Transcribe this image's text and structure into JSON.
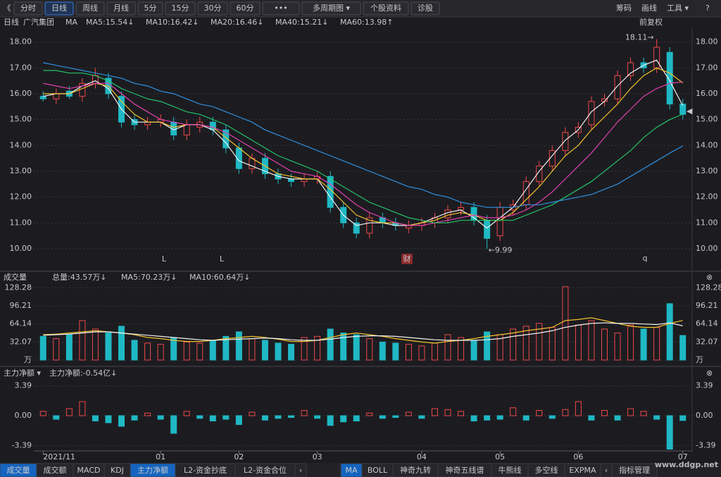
{
  "toolbar": {
    "left": [
      "《",
      "分时",
      "日线",
      "周线",
      "月线",
      "5分",
      "15分",
      "30分",
      "60分",
      "•••",
      "多周期图 ▾",
      "个股资料",
      "诊股"
    ],
    "right": [
      "筹码",
      "画线",
      "工具 ▾",
      "?"
    ]
  },
  "header": {
    "period": "日线",
    "name": "广汽集团",
    "indicator": "MA",
    "adjust": "前复权"
  },
  "chart_data": [
    {
      "type": "candlestick",
      "categories": [
        "2021/11",
        null,
        null,
        null,
        null,
        null,
        null,
        null,
        null,
        "01",
        null,
        null,
        null,
        null,
        null,
        "02",
        null,
        null,
        null,
        null,
        null,
        "03",
        null,
        null,
        null,
        null,
        null,
        null,
        null,
        "04",
        null,
        null,
        null,
        null,
        null,
        "05",
        null,
        null,
        null,
        null,
        null,
        "06",
        null,
        null,
        null,
        null,
        null,
        null,
        null,
        "07"
      ],
      "open": [
        15.9,
        15.8,
        16.1,
        15.9,
        16.4,
        16.6,
        15.9,
        15.0,
        14.8,
        14.9,
        14.9,
        14.4,
        14.7,
        14.9,
        14.6,
        13.9,
        13.1,
        13.5,
        12.9,
        12.7,
        12.6,
        12.7,
        12.8,
        11.6,
        11.0,
        10.6,
        11.2,
        11.0,
        10.8,
        10.9,
        11.0,
        11.2,
        11.5,
        11.6,
        11.1,
        10.5,
        11.5,
        11.7,
        12.6,
        13.2,
        13.8,
        14.5,
        14.8,
        15.7,
        15.8,
        16.7,
        17.2,
        17.0,
        17.6,
        15.6
      ],
      "high": [
        16.1,
        16.2,
        16.3,
        16.6,
        17.0,
        16.8,
        16.1,
        15.2,
        15.1,
        15.2,
        15.1,
        15.0,
        15.1,
        15.1,
        14.8,
        14.1,
        13.7,
        13.7,
        13.1,
        12.9,
        12.9,
        13.0,
        13.0,
        11.8,
        11.2,
        11.4,
        11.4,
        11.2,
        11.1,
        11.2,
        11.4,
        11.7,
        11.8,
        11.8,
        11.3,
        11.8,
        11.9,
        12.8,
        13.4,
        14.0,
        14.7,
        14.9,
        15.9,
        16.0,
        16.9,
        17.4,
        17.4,
        18.11,
        17.8,
        15.8
      ],
      "low": [
        15.7,
        15.6,
        15.8,
        15.7,
        16.2,
        15.8,
        14.7,
        14.6,
        14.6,
        14.7,
        14.2,
        14.2,
        14.5,
        14.4,
        13.7,
        12.9,
        12.9,
        12.7,
        12.5,
        12.4,
        12.4,
        12.5,
        11.4,
        10.8,
        10.4,
        10.4,
        10.8,
        10.7,
        10.6,
        10.7,
        10.8,
        11.0,
        11.3,
        10.9,
        9.99,
        10.3,
        11.3,
        11.5,
        12.4,
        13.0,
        13.6,
        14.3,
        14.6,
        15.5,
        15.6,
        16.5,
        16.8,
        16.8,
        15.4,
        15.0
      ],
      "close": [
        15.8,
        16.0,
        15.9,
        16.4,
        16.7,
        16.0,
        14.9,
        14.8,
        14.9,
        15.0,
        14.4,
        14.8,
        14.9,
        14.6,
        13.9,
        13.1,
        13.5,
        12.9,
        12.7,
        12.6,
        12.7,
        12.8,
        11.6,
        11.0,
        10.6,
        11.2,
        11.0,
        10.9,
        10.9,
        11.0,
        11.2,
        11.5,
        11.6,
        11.1,
        10.4,
        11.6,
        11.7,
        12.6,
        13.2,
        13.8,
        14.5,
        14.7,
        15.7,
        15.8,
        16.7,
        17.2,
        17.0,
        17.8,
        15.6,
        15.2
      ],
      "up_color": "#f0474a",
      "down_color": "#1fb8c4",
      "series": [
        {
          "name": "MA5:15.54↓",
          "color": "#f2f2f2",
          "values": [
            15.9,
            16.0,
            16.0,
            16.3,
            16.5,
            16.2,
            15.4,
            14.9,
            14.9,
            14.9,
            14.6,
            14.8,
            14.8,
            14.6,
            14.1,
            13.4,
            13.2,
            13.0,
            12.8,
            12.7,
            12.7,
            12.7,
            12.0,
            11.3,
            10.9,
            11.0,
            11.0,
            10.9,
            10.9,
            11.0,
            11.2,
            11.4,
            11.5,
            11.2,
            10.8,
            11.2,
            11.6,
            12.3,
            13.0,
            13.6,
            14.2,
            14.6,
            15.3,
            15.7,
            16.3,
            16.8,
            17.1,
            17.3,
            16.5,
            15.54
          ]
        },
        {
          "name": "MA10:16.42↓",
          "color": "#f2c12e",
          "values": [
            16.0,
            16.0,
            16.0,
            16.2,
            16.4,
            16.3,
            15.7,
            15.2,
            14.9,
            14.9,
            14.7,
            14.8,
            14.8,
            14.7,
            14.3,
            13.9,
            13.5,
            13.2,
            12.9,
            12.8,
            12.7,
            12.7,
            12.3,
            11.8,
            11.3,
            11.1,
            11.0,
            11.0,
            10.9,
            11.0,
            11.1,
            11.3,
            11.4,
            11.3,
            11.1,
            11.1,
            11.4,
            11.9,
            12.4,
            13.0,
            13.6,
            14.0,
            14.6,
            15.1,
            15.6,
            16.2,
            16.7,
            17.0,
            16.8,
            16.42
          ]
        },
        {
          "name": "MA20:16.46↓",
          "color": "#e040b0",
          "values": [
            16.4,
            16.3,
            16.2,
            16.3,
            16.4,
            16.4,
            16.0,
            15.6,
            15.3,
            15.0,
            14.9,
            14.8,
            14.8,
            14.7,
            14.5,
            14.2,
            13.9,
            13.6,
            13.3,
            13.0,
            12.9,
            12.8,
            12.5,
            12.1,
            11.7,
            11.4,
            11.2,
            11.0,
            10.9,
            10.9,
            11.0,
            11.1,
            11.2,
            11.3,
            11.2,
            11.2,
            11.3,
            11.5,
            11.8,
            12.2,
            12.7,
            13.2,
            13.7,
            14.3,
            14.9,
            15.4,
            15.9,
            16.2,
            16.4,
            16.46
          ]
        },
        {
          "name": "MA40:15.21↓",
          "color": "#26c26b",
          "values": [
            16.9,
            16.9,
            16.8,
            16.8,
            16.7,
            16.5,
            16.2,
            16.0,
            15.8,
            15.7,
            15.5,
            15.3,
            15.2,
            15.0,
            14.8,
            14.5,
            14.2,
            13.9,
            13.6,
            13.4,
            13.2,
            13.0,
            12.7,
            12.4,
            12.1,
            11.8,
            11.6,
            11.4,
            11.2,
            11.1,
            11.0,
            11.0,
            11.1,
            11.1,
            11.1,
            11.1,
            11.1,
            11.3,
            11.5,
            11.7,
            12.0,
            12.3,
            12.6,
            13.0,
            13.4,
            13.8,
            14.3,
            14.7,
            15.0,
            15.21
          ]
        },
        {
          "name": "MA60:13.98↑",
          "color": "#2f8fe0",
          "values": [
            17.2,
            17.1,
            17.0,
            16.9,
            16.8,
            16.7,
            16.6,
            16.4,
            16.3,
            16.1,
            16.0,
            15.8,
            15.6,
            15.5,
            15.3,
            15.1,
            14.9,
            14.6,
            14.4,
            14.2,
            14.0,
            13.8,
            13.6,
            13.4,
            13.2,
            13.0,
            12.8,
            12.6,
            12.4,
            12.3,
            12.1,
            12.0,
            11.8,
            11.7,
            11.6,
            11.6,
            11.6,
            11.7,
            11.7,
            11.8,
            11.9,
            12.0,
            12.1,
            12.3,
            12.5,
            12.8,
            13.1,
            13.4,
            13.7,
            13.98
          ]
        }
      ],
      "ylim": [
        9.4,
        18.4
      ],
      "yticks": [
        {
          "value": 10,
          "label": "10.00"
        },
        {
          "value": 11,
          "label": "11.00"
        },
        {
          "value": 12,
          "label": "12.00"
        },
        {
          "value": 13,
          "label": "13.00"
        },
        {
          "value": 14,
          "label": "14.00"
        },
        {
          "value": 15,
          "label": "15.00"
        },
        {
          "value": 16,
          "label": "16.00"
        },
        {
          "value": 17,
          "label": "17.00"
        },
        {
          "value": 18,
          "label": "18.00"
        }
      ],
      "annotations": [
        "18.11→",
        "←9.99"
      ],
      "events": [
        "L",
        "L",
        "财",
        "q"
      ],
      "grid": true
    },
    {
      "type": "bar",
      "title": "成交量",
      "total_label": "总量:43.57万↓",
      "values": [
        42,
        38,
        45,
        70,
        55,
        48,
        60,
        35,
        30,
        28,
        40,
        32,
        30,
        35,
        42,
        50,
        38,
        35,
        30,
        28,
        40,
        42,
        55,
        48,
        45,
        38,
        32,
        30,
        28,
        25,
        30,
        45,
        40,
        35,
        50,
        45,
        55,
        60,
        65,
        58,
        130,
        62,
        70,
        55,
        48,
        62,
        55,
        58,
        100,
        43.57
      ],
      "series": [
        {
          "name": "MA5:70.23万↓",
          "color": "#f2c12e",
          "values": [
            45,
            46,
            48,
            50,
            52,
            50,
            48,
            45,
            40,
            38,
            35,
            33,
            33,
            35,
            38,
            40,
            42,
            40,
            37,
            33,
            33,
            35,
            40,
            45,
            48,
            45,
            42,
            38,
            35,
            32,
            30,
            33,
            35,
            38,
            42,
            45,
            48,
            52,
            55,
            58,
            70,
            72,
            75,
            70,
            65,
            60,
            58,
            58,
            65,
            70.23
          ]
        },
        {
          "name": "MA10:60.64万↓",
          "color": "#f2f2f2",
          "values": [
            44,
            45,
            46,
            48,
            50,
            50,
            48,
            46,
            44,
            42,
            40,
            38,
            36,
            35,
            36,
            37,
            38,
            39,
            38,
            36,
            35,
            35,
            37,
            40,
            42,
            43,
            43,
            42,
            40,
            38,
            36,
            35,
            35,
            35,
            36,
            38,
            42,
            45,
            48,
            52,
            58,
            62,
            65,
            66,
            65,
            65,
            64,
            63,
            66,
            60.64
          ]
        }
      ],
      "ylim": [
        0,
        135
      ],
      "yticks": [
        {
          "value": 0,
          "label": "万"
        },
        32.07,
        64.14,
        96.21,
        128.28
      ],
      "grid": true
    },
    {
      "type": "flow",
      "title": "主力净额 ▾",
      "legend": "主力净额:-0.54亿↓",
      "values": [
        0.5,
        -0.4,
        0.8,
        1.6,
        -0.6,
        -0.8,
        -1.2,
        -0.5,
        0.3,
        -0.4,
        -2.0,
        0.5,
        -0.3,
        -0.6,
        -0.4,
        -1.0,
        0.4,
        -0.5,
        -0.3,
        -0.2,
        0.6,
        -0.3,
        -1.1,
        -0.7,
        -0.6,
        0.3,
        -0.3,
        -0.2,
        0.4,
        -0.3,
        0.8,
        0.7,
        0.5,
        -0.6,
        -0.5,
        -0.4,
        0.9,
        -0.5,
        0.6,
        -0.3,
        0.7,
        1.6,
        -0.5,
        0.6,
        -0.5,
        0.8,
        0.5,
        -0.4,
        -3.8,
        -0.54
      ],
      "pos_color": "#f0474a",
      "neg_color": "#1fb8c4",
      "ylim": [
        -4,
        4
      ],
      "yticks": [
        -3.39,
        {
          "value": 0,
          "label": "0.00"
        },
        3.39
      ],
      "grid": true
    }
  ],
  "bottom_tabs": {
    "left": [
      "成交量",
      "成交额",
      "MACD",
      "KDJ",
      "主力净额",
      "L2-资金抄底",
      "L2-资金合位",
      "›"
    ],
    "right": [
      "MA",
      "BOLL",
      "神奇九转",
      "神奇五线谱",
      "牛熊线",
      "多空线",
      "EXPMA",
      "‹",
      "指标管理"
    ]
  },
  "watermark": "www.ddgp.net"
}
